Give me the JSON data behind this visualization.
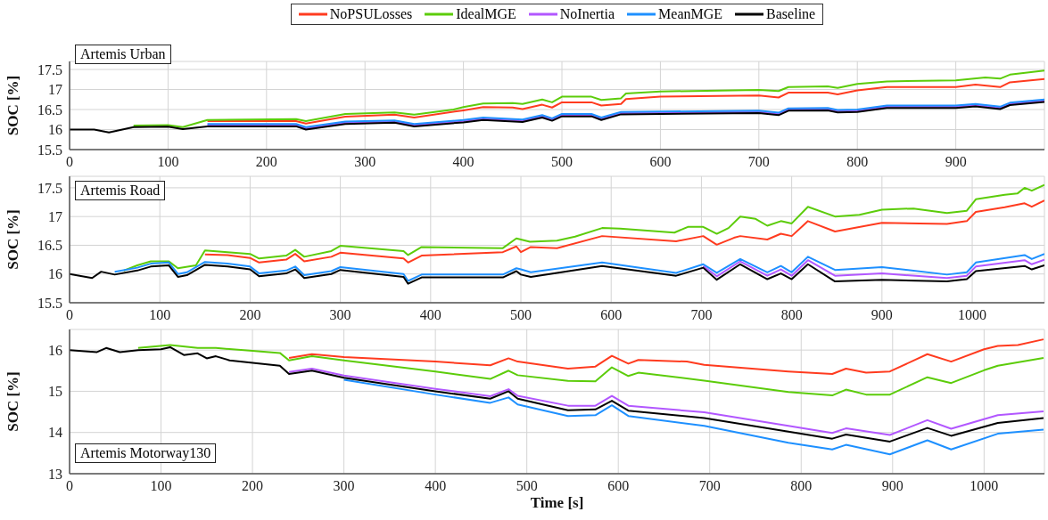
{
  "chart_data": [
    {
      "type": "line",
      "ylabel": "SOC [%]",
      "annotations": [
        "Artemis Urban"
      ],
      "xlim": [
        0,
        990
      ],
      "xticks": [
        0,
        100,
        200,
        300,
        400,
        500,
        600,
        700,
        800,
        900
      ],
      "ylim": [
        15.5,
        17.7
      ],
      "yticks": [
        15.5,
        16,
        16.5,
        17,
        17.5
      ],
      "grid": true,
      "legend": "top",
      "series": [
        {
          "name": "NoPSULosses",
          "color": "#ff3b1f",
          "x": [
            140,
            230,
            240,
            280,
            330,
            350,
            400,
            420,
            450,
            460,
            480,
            490,
            500,
            530,
            540,
            560,
            565,
            600,
            700,
            720,
            730,
            770,
            780,
            800,
            830,
            900,
            920,
            945,
            955,
            990
          ],
          "values": [
            16.21,
            16.21,
            16.15,
            16.32,
            16.37,
            16.3,
            16.48,
            16.56,
            16.55,
            16.51,
            16.62,
            16.55,
            16.68,
            16.68,
            16.6,
            16.64,
            16.76,
            16.82,
            16.85,
            16.8,
            16.92,
            16.92,
            16.88,
            16.98,
            17.06,
            17.06,
            17.12,
            17.06,
            17.18,
            17.26
          ]
        },
        {
          "name": "IdealMGE",
          "color": "#5ccc0a",
          "x": [
            65,
            100,
            115,
            140,
            230,
            240,
            280,
            330,
            350,
            390,
            400,
            420,
            450,
            460,
            480,
            490,
            500,
            530,
            540,
            560,
            565,
            600,
            700,
            720,
            730,
            770,
            780,
            800,
            830,
            900,
            930,
            945,
            955,
            990
          ],
          "values": [
            16.1,
            16.11,
            16.06,
            16.24,
            16.26,
            16.21,
            16.39,
            16.43,
            16.37,
            16.5,
            16.56,
            16.65,
            16.66,
            16.64,
            16.75,
            16.68,
            16.82,
            16.82,
            16.74,
            16.78,
            16.9,
            16.95,
            16.99,
            16.96,
            17.06,
            17.08,
            17.04,
            17.14,
            17.2,
            17.23,
            17.3,
            17.27,
            17.37,
            17.47
          ]
        },
        {
          "name": "NoInertia",
          "color": "#b257ff",
          "x": [
            140,
            230,
            240,
            280,
            330,
            350,
            400,
            420,
            460,
            480,
            490,
            500,
            530,
            540,
            560,
            700,
            720,
            730,
            770,
            780,
            800,
            830,
            900,
            920,
            945,
            955,
            990
          ],
          "values": [
            16.11,
            16.11,
            16.03,
            16.17,
            16.2,
            16.11,
            16.21,
            16.27,
            16.22,
            16.33,
            16.25,
            16.36,
            16.36,
            16.27,
            16.41,
            16.44,
            16.39,
            16.5,
            16.51,
            16.46,
            16.47,
            16.57,
            16.57,
            16.61,
            16.54,
            16.64,
            16.72
          ]
        },
        {
          "name": "MeanMGE",
          "color": "#1e90ff",
          "x": [
            140,
            230,
            240,
            280,
            330,
            350,
            400,
            420,
            460,
            480,
            490,
            500,
            530,
            540,
            560,
            700,
            720,
            730,
            770,
            780,
            800,
            830,
            900,
            920,
            945,
            955,
            990
          ],
          "values": [
            16.14,
            16.14,
            16.06,
            16.2,
            16.23,
            16.14,
            16.24,
            16.3,
            16.25,
            16.36,
            16.28,
            16.39,
            16.39,
            16.3,
            16.44,
            16.47,
            16.42,
            16.53,
            16.54,
            16.49,
            16.5,
            16.6,
            16.6,
            16.64,
            16.57,
            16.67,
            16.75
          ]
        },
        {
          "name": "Baseline",
          "color": "#000000",
          "x": [
            0,
            25,
            40,
            65,
            100,
            115,
            140,
            230,
            240,
            280,
            330,
            350,
            400,
            420,
            460,
            480,
            490,
            500,
            530,
            540,
            560,
            700,
            720,
            730,
            770,
            780,
            800,
            830,
            900,
            920,
            945,
            955,
            990
          ],
          "values": [
            16,
            16,
            15.93,
            16.06,
            16.07,
            16.01,
            16.08,
            16.08,
            16,
            16.14,
            16.17,
            16.08,
            16.18,
            16.24,
            16.19,
            16.3,
            16.22,
            16.33,
            16.33,
            16.24,
            16.38,
            16.41,
            16.36,
            16.47,
            16.48,
            16.43,
            16.44,
            16.54,
            16.54,
            16.58,
            16.51,
            16.61,
            16.69
          ]
        }
      ]
    },
    {
      "type": "line",
      "ylabel": "SOC [%]",
      "annotations": [
        "Artemis Road"
      ],
      "xlim": [
        0,
        1080
      ],
      "xticks": [
        0,
        100,
        200,
        300,
        400,
        500,
        600,
        700,
        800,
        900,
        1000
      ],
      "ylim": [
        15.5,
        17.7
      ],
      "yticks": [
        15.5,
        16,
        16.5,
        17,
        17.5
      ],
      "grid": true,
      "series": [
        {
          "color": "#ff3b1f",
          "x": [
            150,
            175,
            200,
            210,
            240,
            250,
            260,
            290,
            300,
            370,
            375,
            390,
            480,
            495,
            500,
            511,
            540,
            590,
            672,
            702,
            717,
            736,
            743,
            773,
            788,
            800,
            818,
            848,
            900,
            972,
            994,
            1004,
            1036,
            1058,
            1066,
            1080
          ],
          "values": [
            16.34,
            16.33,
            16.28,
            16.2,
            16.25,
            16.35,
            16.22,
            16.3,
            16.37,
            16.27,
            16.2,
            16.32,
            16.38,
            16.48,
            16.38,
            16.47,
            16.45,
            16.66,
            16.57,
            16.66,
            16.51,
            16.63,
            16.66,
            16.6,
            16.7,
            16.66,
            16.92,
            16.74,
            16.89,
            16.87,
            16.92,
            17.08,
            17.16,
            17.23,
            17.17,
            17.28
          ]
        },
        {
          "color": "#5ccc0a",
          "x": [
            60,
            75,
            90,
            110,
            120,
            140,
            150,
            175,
            200,
            210,
            240,
            250,
            260,
            290,
            300,
            370,
            375,
            390,
            480,
            495,
            500,
            510,
            540,
            560,
            590,
            610,
            670,
            685,
            702,
            717,
            730,
            743,
            760,
            773,
            788,
            800,
            818,
            848,
            875,
            900,
            935,
            972,
            994,
            1004,
            1036,
            1050,
            1058,
            1066,
            1080
          ],
          "values": [
            16.06,
            16.15,
            16.22,
            16.22,
            16.1,
            16.15,
            16.41,
            16.38,
            16.35,
            16.27,
            16.32,
            16.42,
            16.3,
            16.4,
            16.49,
            16.4,
            16.33,
            16.47,
            16.45,
            16.62,
            16.6,
            16.56,
            16.58,
            16.65,
            16.8,
            16.79,
            16.72,
            16.82,
            16.82,
            16.7,
            16.8,
            17,
            16.96,
            16.84,
            16.92,
            16.88,
            17.17,
            17,
            17.03,
            17.12,
            17.14,
            17.06,
            17.1,
            17.3,
            17.38,
            17.4,
            17.5,
            17.45,
            17.55
          ]
        },
        {
          "color": "#b257ff",
          "x": [
            702,
            717,
            743,
            773,
            788,
            800,
            818,
            848,
            900,
            972,
            994,
            1004,
            1058,
            1066,
            1080
          ],
          "values": [
            16.14,
            15.96,
            16.22,
            15.97,
            16.08,
            15.97,
            16.24,
            15.97,
            16.01,
            15.93,
            15.97,
            16.13,
            16.24,
            16.17,
            16.25
          ]
        },
        {
          "color": "#1e90ff",
          "x": [
            50,
            75,
            90,
            110,
            120,
            130,
            150,
            175,
            200,
            210,
            240,
            250,
            260,
            290,
            300,
            370,
            375,
            390,
            480,
            495,
            500,
            511,
            590,
            672,
            702,
            717,
            743,
            773,
            788,
            800,
            818,
            848,
            900,
            972,
            994,
            1004,
            1058,
            1066,
            1080
          ],
          "values": [
            16.04,
            16.11,
            16.18,
            16.2,
            16,
            16.03,
            16.21,
            16.18,
            16.13,
            16.01,
            16.06,
            16.13,
            15.98,
            16.05,
            16.12,
            16,
            15.88,
            15.99,
            15.99,
            16.1,
            16.08,
            16.03,
            16.2,
            16.02,
            16.17,
            16.02,
            16.26,
            16.03,
            16.14,
            16.03,
            16.3,
            16.07,
            16.12,
            15.99,
            16.03,
            16.2,
            16.33,
            16.26,
            16.35
          ]
        },
        {
          "color": "#000000",
          "x": [
            0,
            25,
            35,
            50,
            75,
            90,
            110,
            120,
            130,
            150,
            175,
            200,
            210,
            240,
            250,
            260,
            290,
            300,
            370,
            375,
            390,
            480,
            495,
            500,
            511,
            590,
            672,
            702,
            717,
            743,
            773,
            788,
            800,
            818,
            848,
            900,
            972,
            994,
            1004,
            1058,
            1066,
            1080
          ],
          "values": [
            16,
            15.93,
            16.04,
            15.99,
            16.06,
            16.13,
            16.15,
            15.95,
            15.98,
            16.16,
            16.13,
            16.08,
            15.96,
            16.01,
            16.08,
            15.93,
            16,
            16.07,
            15.95,
            15.83,
            15.94,
            15.94,
            16.05,
            15.99,
            15.95,
            16.14,
            15.97,
            16.11,
            15.9,
            16.17,
            15.91,
            16.01,
            15.91,
            16.17,
            15.87,
            15.9,
            15.87,
            15.91,
            16.05,
            16.14,
            16.08,
            16.15
          ]
        }
      ]
    },
    {
      "type": "line",
      "xlabel": "Time [s]",
      "ylabel": "SOC [%]",
      "annotations": [
        "Artemis Motorway130"
      ],
      "xlim": [
        0,
        1066
      ],
      "xticks": [
        0,
        100,
        200,
        300,
        400,
        500,
        600,
        700,
        800,
        900,
        1000
      ],
      "ylim": [
        13,
        16.5
      ],
      "yticks": [
        13,
        14,
        15,
        16
      ],
      "grid": true,
      "series": [
        {
          "color": "#ff3b1f",
          "x": [
            240,
            265,
            300,
            400,
            460,
            480,
            490,
            545,
            575,
            593,
            611,
            622,
            675,
            694,
            786,
            834,
            849,
            871,
            897,
            938,
            964,
            1000,
            1015,
            1037,
            1065
          ],
          "values": [
            15.81,
            15.9,
            15.83,
            15.72,
            15.63,
            15.8,
            15.72,
            15.55,
            15.6,
            15.86,
            15.67,
            15.76,
            15.72,
            15.64,
            15.48,
            15.42,
            15.55,
            15.45,
            15.48,
            15.9,
            15.72,
            16.02,
            16.1,
            16.12,
            16.26
          ]
        },
        {
          "color": "#5ccc0a",
          "x": [
            75,
            110,
            140,
            160,
            200,
            230,
            240,
            265,
            300,
            400,
            460,
            480,
            490,
            545,
            575,
            593,
            611,
            622,
            694,
            786,
            834,
            849,
            871,
            897,
            938,
            964,
            1000,
            1015,
            1065
          ],
          "values": [
            16.05,
            16.12,
            16.05,
            16.05,
            15.98,
            15.93,
            15.75,
            15.85,
            15.75,
            15.48,
            15.3,
            15.5,
            15.39,
            15.25,
            15.24,
            15.58,
            15.37,
            15.45,
            15.26,
            14.98,
            14.9,
            15.04,
            14.92,
            14.92,
            15.34,
            15.2,
            15.51,
            15.62,
            15.81
          ]
        },
        {
          "color": "#b257ff",
          "x": [
            240,
            265,
            300,
            400,
            460,
            480,
            490,
            545,
            575,
            593,
            611,
            694,
            786,
            834,
            849,
            897,
            938,
            964,
            1015,
            1065
          ],
          "values": [
            15.47,
            15.55,
            15.38,
            15.06,
            14.88,
            15.05,
            14.89,
            14.65,
            14.65,
            14.89,
            14.65,
            14.49,
            14.16,
            13.99,
            14.1,
            13.94,
            14.3,
            14.09,
            14.42,
            14.51
          ]
        },
        {
          "color": "#1e90ff",
          "x": [
            300,
            400,
            460,
            480,
            490,
            545,
            575,
            593,
            611,
            694,
            786,
            834,
            849,
            897,
            938,
            964,
            1015,
            1065
          ],
          "values": [
            15.28,
            14.92,
            14.72,
            14.85,
            14.68,
            14.4,
            14.42,
            14.66,
            14.4,
            14.16,
            13.75,
            13.59,
            13.7,
            13.47,
            13.81,
            13.59,
            13.97,
            14.07
          ]
        },
        {
          "color": "#000000",
          "x": [
            0,
            30,
            40,
            55,
            75,
            100,
            110,
            125,
            140,
            150,
            160,
            175,
            230,
            240,
            265,
            300,
            400,
            460,
            480,
            490,
            545,
            575,
            593,
            611,
            694,
            786,
            834,
            849,
            897,
            938,
            964,
            1015,
            1065
          ],
          "values": [
            16,
            15.95,
            16.05,
            15.95,
            16,
            16.02,
            16.07,
            15.88,
            15.92,
            15.8,
            15.85,
            15.75,
            15.62,
            15.42,
            15.5,
            15.33,
            15,
            14.82,
            15,
            14.82,
            14.54,
            14.56,
            14.77,
            14.53,
            14.35,
            14.02,
            13.85,
            13.95,
            13.78,
            14.11,
            13.92,
            14.23,
            14.35
          ]
        }
      ]
    }
  ]
}
